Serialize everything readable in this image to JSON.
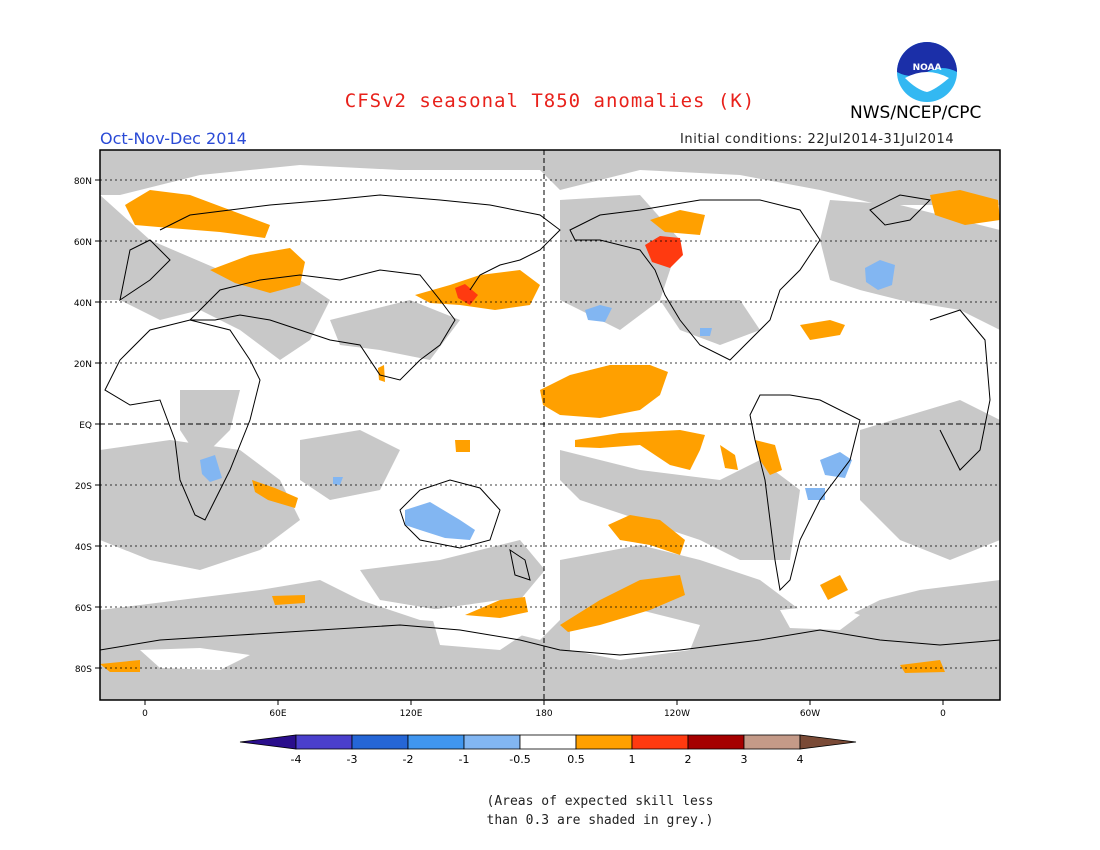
{
  "header": {
    "title": "CFSv2 seasonal T850 anomalies (K)",
    "title_color": "#e8211b",
    "agency": "NWS/NCEP/CPC",
    "season": "Oct-Nov-Dec 2014",
    "season_color": "#2a4ad6",
    "initial_conditions": "Initial conditions: 22Jul2014-31Jul2014"
  },
  "logo": {
    "icon": "noaa-logo-icon",
    "text": "NOAA"
  },
  "map": {
    "lat_labels": [
      "80N",
      "60N",
      "40N",
      "20N",
      "EQ",
      "20S",
      "40S",
      "60S",
      "80S"
    ],
    "lon_labels": [
      "0",
      "60E",
      "120E",
      "180",
      "120W",
      "60W",
      "0"
    ],
    "grey_color": "#c8c8c8",
    "ocean_color": "#ffffff"
  },
  "colorbar": {
    "labels": [
      "-4",
      "-3",
      "-2",
      "-1",
      "-0.5",
      "0.5",
      "1",
      "2",
      "3",
      "4"
    ],
    "colors": [
      "#2a0e8c",
      "#4a3fcc",
      "#2566d6",
      "#4096ef",
      "#82b6f2",
      "#ffffff",
      "#ffa000",
      "#ff3a10",
      "#a50000",
      "#c49a88",
      "#7a4a36"
    ]
  },
  "note": {
    "line1": "(Areas of expected skill less",
    "line2": "than 0.3 are shaded in grey.)"
  }
}
